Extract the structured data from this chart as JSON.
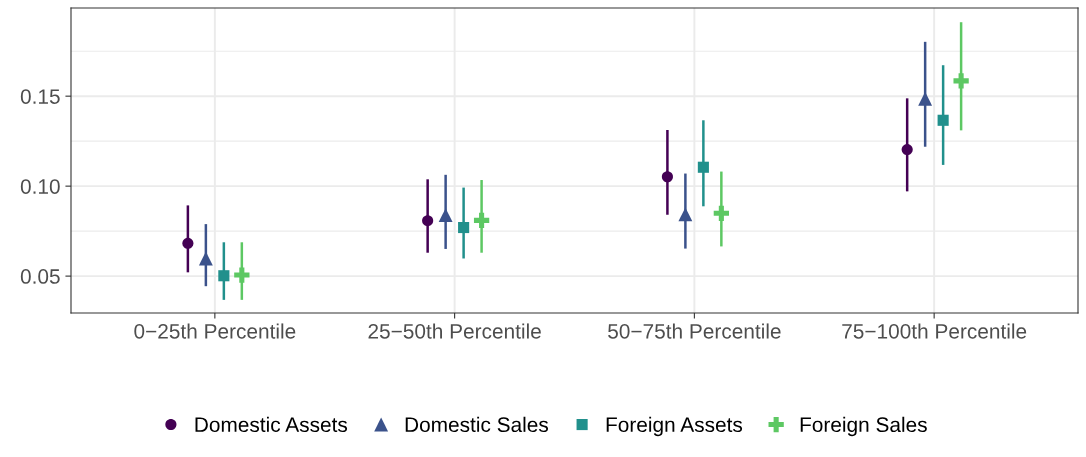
{
  "chart_data": {
    "type": "scatter",
    "categories": [
      "0−25th Percentile",
      "25−50th Percentile",
      "50−75th Percentile",
      "75−100th Percentile"
    ],
    "ylim": [
      0.0295,
      0.199
    ],
    "yticks": [
      {
        "value": 0.05,
        "label": "0.05"
      },
      {
        "value": 0.1,
        "label": "0.10"
      },
      {
        "value": 0.15,
        "label": "0.15"
      }
    ],
    "grid": true,
    "legend": "bottom",
    "series": [
      {
        "name": "Domestic Assets",
        "color": "#440154",
        "marker": "circle",
        "values": [
          0.0682,
          0.0808,
          0.1052,
          0.1203
        ],
        "errors": [
          [
            0.0521,
            0.0893
          ],
          [
            0.063,
            0.1038
          ],
          [
            0.0841,
            0.1312
          ],
          [
            0.0971,
            0.1488
          ]
        ]
      },
      {
        "name": "Domestic Sales",
        "color": "#3b528b",
        "marker": "triangle",
        "values": [
          0.0598,
          0.0839,
          0.0843,
          0.1486
        ],
        "errors": [
          [
            0.0444,
            0.0789
          ],
          [
            0.0651,
            0.1063
          ],
          [
            0.0653,
            0.107
          ],
          [
            0.1219,
            0.1802
          ]
        ]
      },
      {
        "name": "Foreign Assets",
        "color": "#21908c",
        "marker": "square",
        "values": [
          0.0502,
          0.077,
          0.1105,
          0.1366
        ],
        "errors": [
          [
            0.0368,
            0.0688
          ],
          [
            0.0598,
            0.0992
          ],
          [
            0.0888,
            0.1366
          ],
          [
            0.1118,
            0.1672
          ]
        ]
      },
      {
        "name": "Foreign Sales",
        "color": "#5dc863",
        "marker": "cross",
        "values": [
          0.0506,
          0.081,
          0.0849,
          0.1585
        ],
        "errors": [
          [
            0.0368,
            0.0688
          ],
          [
            0.063,
            0.1034
          ],
          [
            0.0665,
            0.1081
          ],
          [
            0.131,
            0.1911
          ]
        ]
      }
    ]
  }
}
